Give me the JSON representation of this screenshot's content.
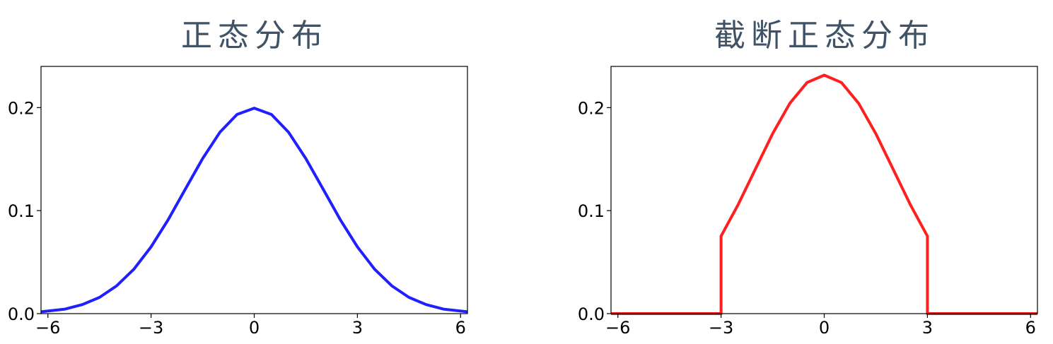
{
  "chart_data": [
    {
      "type": "line",
      "title": "正态分布",
      "xlabel": "",
      "ylabel": "",
      "xlim": [
        -6.2,
        6.2
      ],
      "ylim": [
        0,
        0.24
      ],
      "xticks": [
        -6,
        -3,
        0,
        3,
        6
      ],
      "xtick_labels": [
        "−6",
        "−3",
        "0",
        "3",
        "6"
      ],
      "yticks": [
        0,
        0.1,
        0.2
      ],
      "ytick_labels": [
        "0.0",
        "0.1",
        "0.2"
      ],
      "grid": false,
      "series": [
        {
          "color": "#1f1fff",
          "x": [
            -6.2,
            -5.5,
            -5,
            -4.5,
            -4,
            -3.5,
            -3,
            -2.5,
            -2,
            -1.5,
            -1,
            -0.5,
            0,
            0.5,
            1,
            1.5,
            2,
            2.5,
            3,
            3.5,
            4,
            4.5,
            5,
            5.5,
            6.2
          ],
          "y": [
            0.0018,
            0.0044,
            0.0088,
            0.0158,
            0.027,
            0.0431,
            0.0648,
            0.0913,
            0.121,
            0.1506,
            0.176,
            0.1934,
            0.1995,
            0.1934,
            0.176,
            0.1506,
            0.121,
            0.0913,
            0.0648,
            0.0431,
            0.027,
            0.0158,
            0.0088,
            0.0044,
            0.0018
          ]
        }
      ]
    },
    {
      "type": "line",
      "title": "截断正态分布",
      "xlabel": "",
      "ylabel": "",
      "xlim": [
        -6.2,
        6.2
      ],
      "ylim": [
        0,
        0.24
      ],
      "xticks": [
        -6,
        -3,
        0,
        3,
        6
      ],
      "xtick_labels": [
        "−6",
        "−3",
        "0",
        "3",
        "6"
      ],
      "yticks": [
        0,
        0.1,
        0.2
      ],
      "ytick_labels": [
        "0.0",
        "0.1",
        "0.2"
      ],
      "grid": false,
      "series": [
        {
          "color": "#ff1f1f",
          "x": [
            -6.2,
            -3,
            -3,
            -2.5,
            -2,
            -1.5,
            -1,
            -0.5,
            0,
            0.5,
            1,
            1.5,
            2,
            2.5,
            3,
            3,
            6.2
          ],
          "y": [
            0,
            0,
            0.0752,
            0.106,
            0.1404,
            0.1748,
            0.2042,
            0.2244,
            0.2315,
            0.2244,
            0.2042,
            0.1748,
            0.1404,
            0.106,
            0.0752,
            0,
            0
          ]
        }
      ]
    }
  ]
}
